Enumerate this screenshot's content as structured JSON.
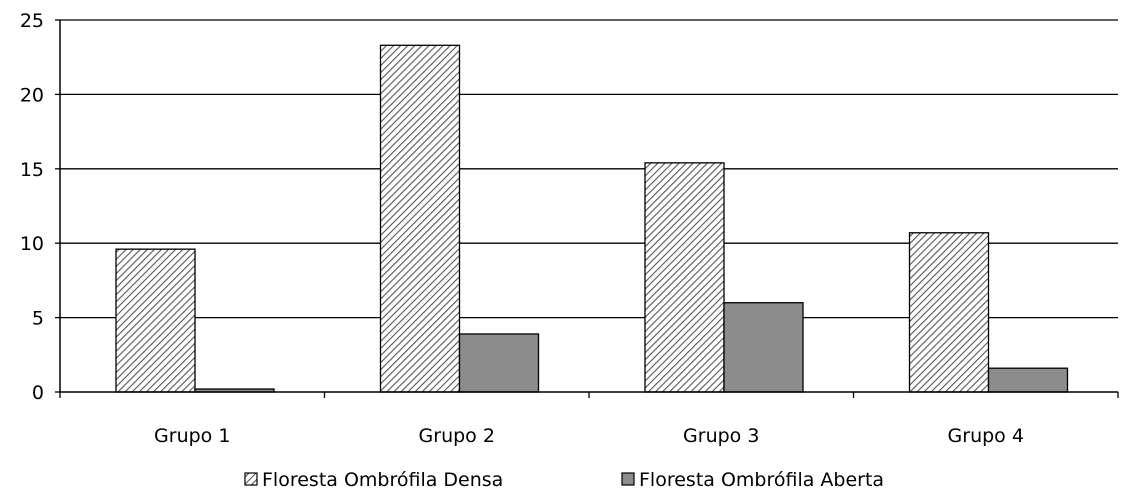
{
  "chart_data": {
    "type": "bar",
    "title": "",
    "xlabel": "",
    "ylabel": "",
    "categories": [
      "Grupo 1",
      "Grupo 2",
      "Grupo 3",
      "Grupo 4"
    ],
    "series": [
      {
        "name": "Floresta Ombrófila Densa",
        "values": [
          9.6,
          23.3,
          15.4,
          10.7
        ]
      },
      {
        "name": "Floresta Ombrófila Aberta",
        "values": [
          0.2,
          3.9,
          6.0,
          1.6
        ]
      }
    ],
    "ylim": [
      0,
      25
    ],
    "yticks": [
      "0",
      "5",
      "10",
      "15",
      "20",
      "25"
    ],
    "grid": true,
    "legend_position": "bottom",
    "colors": {
      "series_0_fill": "#ffffff",
      "series_0_hatch": "#555555",
      "series_1_fill": "#8c8c8c",
      "bar_stroke": "#000000",
      "gridline": "#000000"
    }
  }
}
